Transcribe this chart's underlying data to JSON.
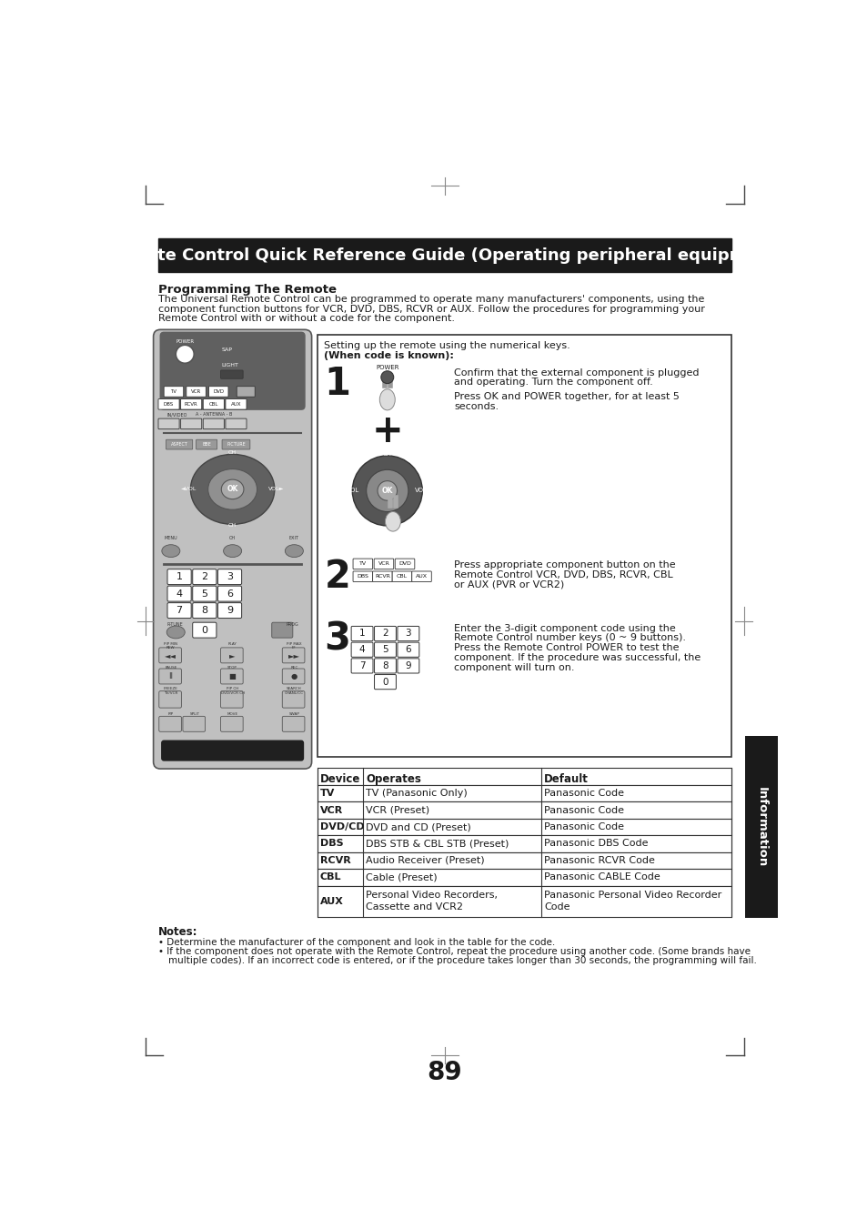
{
  "page_bg": "#ffffff",
  "title": "Remote Control Quick Reference Guide (Operating peripheral equipment)",
  "section_heading": "Programming The Remote",
  "intro_line1": "The Universal Remote Control can be programmed to operate many manufacturers' components, using the",
  "intro_line2": "component function buttons for VCR, DVD, DBS, RCVR or AUX. Follow the procedures for programming your",
  "intro_line3": "Remote Control with or without a code for the component.",
  "setup_label": "Setting up the remote using the numerical keys.",
  "when_code": "(When code is known):",
  "step1_text1": "Confirm that the external component is plugged",
  "step1_text2": "and operating. Turn the component off.",
  "step1_text3": "Press OK and POWER together, for at least 5",
  "step1_text4": "seconds.",
  "step2_text1": "Press appropriate component button on the",
  "step2_text2": "Remote Control VCR, DVD, DBS, RCVR, CBL",
  "step2_text3": "or AUX (PVR or VCR2)",
  "step3_text1": "Enter the 3-digit component code using the",
  "step3_text2": "Remote Control number keys (0 ~ 9 buttons).",
  "step3_text3": "Press the Remote Control POWER to test the",
  "step3_text4": "component. If the procedure was successful, the",
  "step3_text5": "component will turn on.",
  "table_headers": [
    "Device",
    "Operates",
    "Default"
  ],
  "table_rows": [
    [
      "TV",
      "TV (Panasonic Only)",
      "Panasonic Code"
    ],
    [
      "VCR",
      "VCR (Preset)",
      "Panasonic Code"
    ],
    [
      "DVD/CD",
      "DVD and CD (Preset)",
      "Panasonic Code"
    ],
    [
      "DBS",
      "DBS STB & CBL STB (Preset)",
      "Panasonic DBS Code"
    ],
    [
      "RCVR",
      "Audio Receiver (Preset)",
      "Panasonic RCVR Code"
    ],
    [
      "CBL",
      "Cable (Preset)",
      "Panasonic CABLE Code"
    ],
    [
      "AUX",
      "Personal Video Recorders,\nCassette and VCR2",
      "Panasonic Personal Video Recorder\nCode"
    ]
  ],
  "notes_heading": "Notes:",
  "note1": "Determine the manufacturer of the component and look in the table for the code.",
  "note2": "If the component does not operate with the Remote Control, repeat the procedure using another code. (Some brands have",
  "note3": "multiple codes). If an incorrect code is entered, or if the procedure takes longer than 30 seconds, the programming will fail.",
  "info_text": "Information",
  "page_num": "89",
  "dark_color": "#1a1a1a",
  "title_bg": "#1a1a1a",
  "title_fg": "#ffffff",
  "remote_gray": "#c0c0c0",
  "remote_dark_gray": "#606060",
  "remote_med_gray": "#909090",
  "remote_black": "#202020"
}
